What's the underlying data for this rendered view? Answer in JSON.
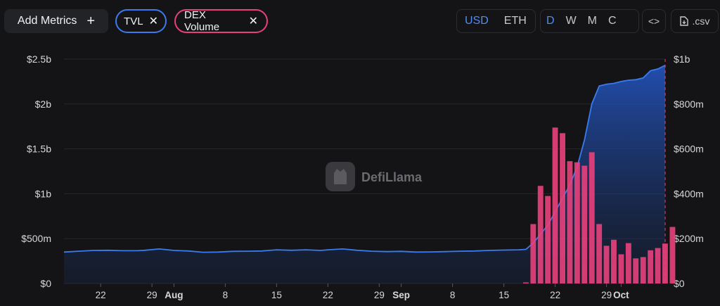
{
  "toolbar": {
    "add_metrics": {
      "label": "Add Metrics",
      "icon": "plus-icon"
    },
    "chips": [
      {
        "label": "TVL",
        "color": "#3a7bf0"
      },
      {
        "label": "DEX Volume",
        "color": "#e9407c"
      }
    ],
    "currency": {
      "options": [
        "USD",
        "ETH"
      ],
      "selected": "USD"
    },
    "period": {
      "options": [
        "D",
        "W",
        "M",
        "C"
      ],
      "selected": "D"
    },
    "embed_icon": "code-brackets-icon",
    "csv": {
      "label": ".csv",
      "icon": "download-file-icon"
    }
  },
  "watermark": "DefiLlama",
  "chart_data": {
    "type": "bar+area",
    "left_axis": {
      "ticks": [
        "$0",
        "$500m",
        "$1b",
        "$1.5b",
        "$2b",
        "$2.5b"
      ],
      "ylim": [
        0,
        2500000000
      ]
    },
    "right_axis": {
      "ticks": [
        "$0",
        "$200m",
        "$400m",
        "$600m",
        "$800m",
        "$1b"
      ],
      "ylim": [
        0,
        1000000000
      ]
    },
    "x_range": [
      "2023-07-17",
      "2023-10-07"
    ],
    "x_ticks": [
      {
        "label": "22",
        "date": "2023-07-22"
      },
      {
        "label": "29",
        "date": "2023-07-29"
      },
      {
        "label": "Aug",
        "date": "2023-08-01",
        "bold": true
      },
      {
        "label": "8",
        "date": "2023-08-08"
      },
      {
        "label": "15",
        "date": "2023-08-15"
      },
      {
        "label": "22",
        "date": "2023-08-22"
      },
      {
        "label": "29",
        "date": "2023-08-29"
      },
      {
        "label": "Sep",
        "date": "2023-09-01",
        "bold": true
      },
      {
        "label": "8",
        "date": "2023-09-08"
      },
      {
        "label": "15",
        "date": "2023-09-15"
      },
      {
        "label": "22",
        "date": "2023-09-22"
      },
      {
        "label": "29",
        "date": "2023-09-29"
      },
      {
        "label": "Oct",
        "date": "2023-10-01",
        "bold": true
      }
    ],
    "grid": true,
    "series": [
      {
        "name": "TVL",
        "type": "area",
        "axis": "left",
        "color": "#3a7bf0",
        "points": [
          [
            "2023-07-17",
            350000000
          ],
          [
            "2023-07-19",
            360000000
          ],
          [
            "2023-07-21",
            368000000
          ],
          [
            "2023-07-23",
            370000000
          ],
          [
            "2023-07-25",
            365000000
          ],
          [
            "2023-07-27",
            365000000
          ],
          [
            "2023-07-28",
            370000000
          ],
          [
            "2023-07-30",
            385000000
          ],
          [
            "2023-08-01",
            368000000
          ],
          [
            "2023-08-03",
            362000000
          ],
          [
            "2023-08-05",
            348000000
          ],
          [
            "2023-08-07",
            350000000
          ],
          [
            "2023-08-09",
            358000000
          ],
          [
            "2023-08-11",
            360000000
          ],
          [
            "2023-08-13",
            362000000
          ],
          [
            "2023-08-15",
            375000000
          ],
          [
            "2023-08-17",
            370000000
          ],
          [
            "2023-08-19",
            375000000
          ],
          [
            "2023-08-21",
            368000000
          ],
          [
            "2023-08-22",
            375000000
          ],
          [
            "2023-08-24",
            385000000
          ],
          [
            "2023-08-26",
            370000000
          ],
          [
            "2023-08-28",
            360000000
          ],
          [
            "2023-08-30",
            355000000
          ],
          [
            "2023-09-01",
            358000000
          ],
          [
            "2023-09-03",
            350000000
          ],
          [
            "2023-09-05",
            352000000
          ],
          [
            "2023-09-07",
            355000000
          ],
          [
            "2023-09-09",
            360000000
          ],
          [
            "2023-09-11",
            362000000
          ],
          [
            "2023-09-13",
            368000000
          ],
          [
            "2023-09-15",
            372000000
          ],
          [
            "2023-09-17",
            375000000
          ],
          [
            "2023-09-18",
            380000000
          ],
          [
            "2023-09-19",
            450000000
          ],
          [
            "2023-09-20",
            550000000
          ],
          [
            "2023-09-21",
            650000000
          ],
          [
            "2023-09-22",
            800000000
          ],
          [
            "2023-09-23",
            950000000
          ],
          [
            "2023-09-24",
            1100000000
          ],
          [
            "2023-09-25",
            1300000000
          ],
          [
            "2023-09-26",
            1600000000
          ],
          [
            "2023-09-27",
            2000000000
          ],
          [
            "2023-09-28",
            2200000000
          ],
          [
            "2023-09-29",
            2220000000
          ],
          [
            "2023-09-30",
            2230000000
          ],
          [
            "2023-10-01",
            2250000000
          ],
          [
            "2023-10-02",
            2265000000
          ],
          [
            "2023-10-03",
            2270000000
          ],
          [
            "2023-10-04",
            2290000000
          ],
          [
            "2023-10-05",
            2370000000
          ],
          [
            "2023-10-06",
            2390000000
          ],
          [
            "2023-10-07",
            2430000000
          ]
        ]
      },
      {
        "name": "DEX Volume",
        "type": "bar",
        "axis": "right",
        "color": "#e9407c",
        "points": [
          [
            "2023-09-17",
            0
          ],
          [
            "2023-09-18",
            5000000
          ],
          [
            "2023-09-19",
            265000000
          ],
          [
            "2023-09-20",
            435000000
          ],
          [
            "2023-09-21",
            390000000
          ],
          [
            "2023-09-22",
            695000000
          ],
          [
            "2023-09-23",
            670000000
          ],
          [
            "2023-09-24",
            545000000
          ],
          [
            "2023-09-25",
            540000000
          ],
          [
            "2023-09-26",
            525000000
          ],
          [
            "2023-09-27",
            585000000
          ],
          [
            "2023-09-28",
            265000000
          ],
          [
            "2023-09-29",
            168000000
          ],
          [
            "2023-09-30",
            195000000
          ],
          [
            "2023-10-01",
            130000000
          ],
          [
            "2023-10-02",
            180000000
          ],
          [
            "2023-10-03",
            112000000
          ],
          [
            "2023-10-04",
            118000000
          ],
          [
            "2023-10-05",
            148000000
          ],
          [
            "2023-10-06",
            158000000
          ],
          [
            "2023-10-07",
            178000000
          ],
          [
            "2023-10-08",
            252000000
          ]
        ]
      }
    ]
  }
}
